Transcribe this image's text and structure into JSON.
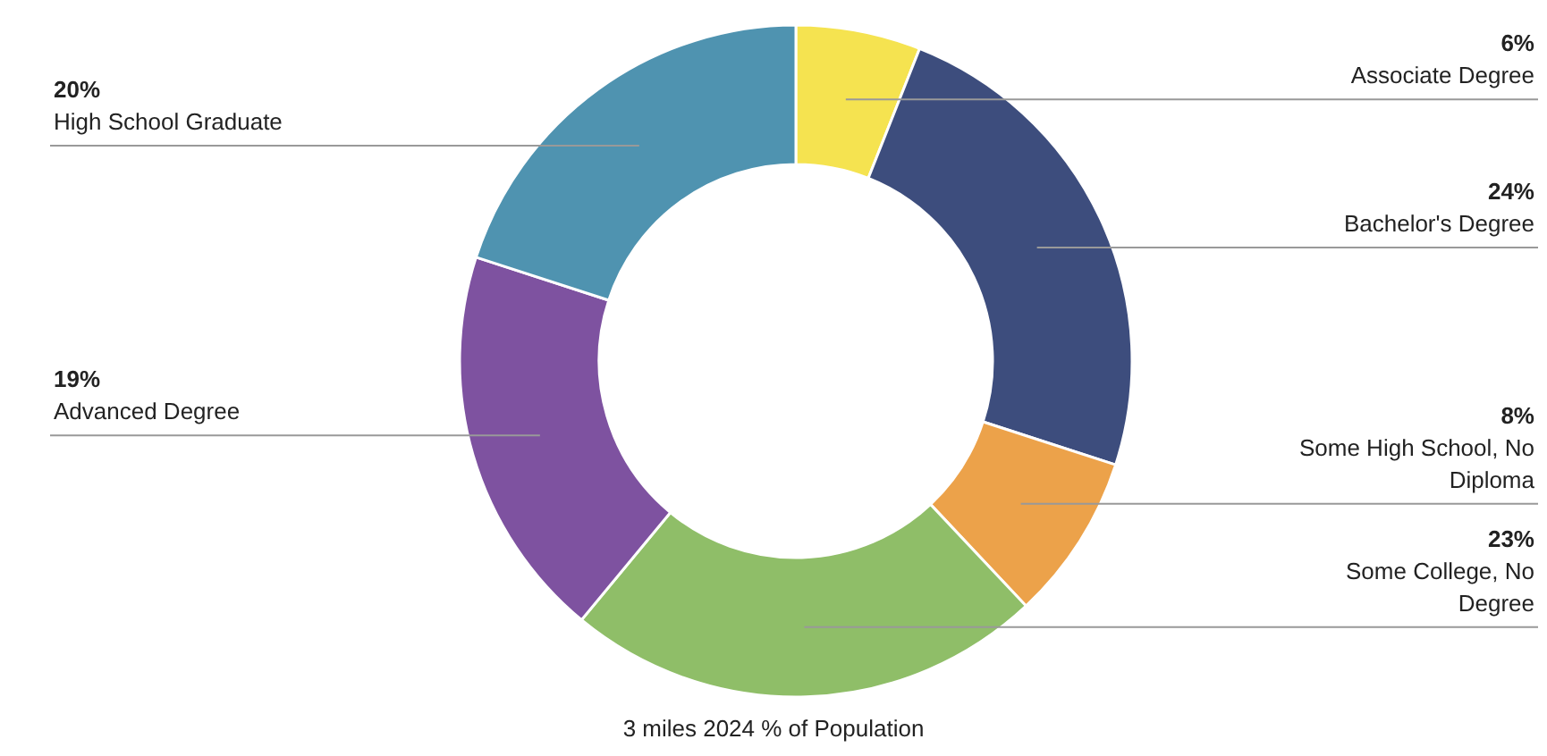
{
  "chart_data": {
    "type": "donut",
    "title": "3 miles 2024 % of Population",
    "categories": [
      "Associate Degree",
      "Bachelor's Degree",
      "Some High School, No Diploma",
      "Some College, No Degree",
      "Advanced Degree",
      "High School Graduate"
    ],
    "values": [
      6,
      24,
      8,
      23,
      19,
      20
    ],
    "value_labels": [
      "6%",
      "24%",
      "8%",
      "23%",
      "19%",
      "20%"
    ],
    "colors": [
      "#f5e350",
      "#3d4d7d",
      "#eca24a",
      "#8fbe68",
      "#7e52a0",
      "#4f93b0"
    ]
  }
}
